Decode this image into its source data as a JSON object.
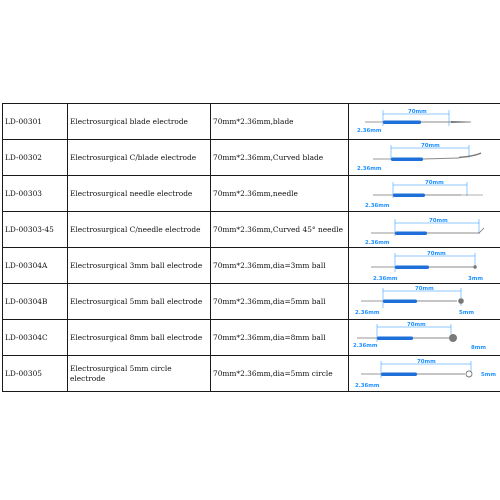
{
  "products": [
    {
      "code": "LD-00301",
      "description": "Electrosurgical blade electrode",
      "spec": "70mm*2.36mm,blade",
      "tip": "blade",
      "figure": {
        "length_label": "70mm",
        "diameter_label": "2.36mm"
      }
    },
    {
      "code": "LD-00302",
      "description": "Electrosurgical C/blade electrode",
      "spec": "70mm*2.36mm,Curved blade",
      "tip": "curved-blade",
      "figure": {
        "length_label": "70mm",
        "diameter_label": "2.36mm"
      }
    },
    {
      "code": "LD-00303",
      "description": "Electrosurgical needle electrode",
      "spec": "70mm*2.36mm,needle",
      "tip": "needle",
      "figure": {
        "length_label": "70mm",
        "diameter_label": "2.36mm"
      }
    },
    {
      "code": "LD-00303-45",
      "description": "Electrosurgical C/needle electrode",
      "spec": "70mm*2.36mm,Curved 45° needle",
      "tip": "curved-needle",
      "figure": {
        "length_label": "70mm",
        "diameter_label": "2.36mm"
      }
    },
    {
      "code": "LD-00304A",
      "description": "Electrosurgical 3mm ball electrode",
      "spec": "70mm*2.36mm,dia=3mm ball",
      "tip": "ball-small",
      "figure": {
        "length_label": "70mm",
        "diameter_label": "2.36mm",
        "tip_label": "3mm"
      }
    },
    {
      "code": "LD-00304B",
      "description": "Electrosurgical 5mm ball electrode",
      "spec": "70mm*2.36mm,dia=5mm ball",
      "tip": "ball-medium",
      "figure": {
        "length_label": "70mm",
        "diameter_label": "2.36mm",
        "tip_label": "5mm"
      }
    },
    {
      "code": "LD-00304C",
      "description": "Electrosurgical 8mm ball electrode",
      "spec": "70mm*2.36mm,dia=8mm ball",
      "tip": "ball-large",
      "figure": {
        "length_label": "70mm",
        "diameter_label": "2.36mm",
        "tip_label": "8mm"
      }
    },
    {
      "code": "LD-00305",
      "description": "Electrosurgical 5mm circle electrode",
      "spec": "70mm*2.36mm,dia=5mm circle",
      "tip": "circle",
      "figure": {
        "length_label": "70mm",
        "diameter_label": "2.36mm",
        "tip_label": "5mm"
      }
    }
  ],
  "colors": {
    "handle": "#1e6fd9",
    "dimension": "#1e90ff",
    "shaft": "#8a8a8a"
  }
}
